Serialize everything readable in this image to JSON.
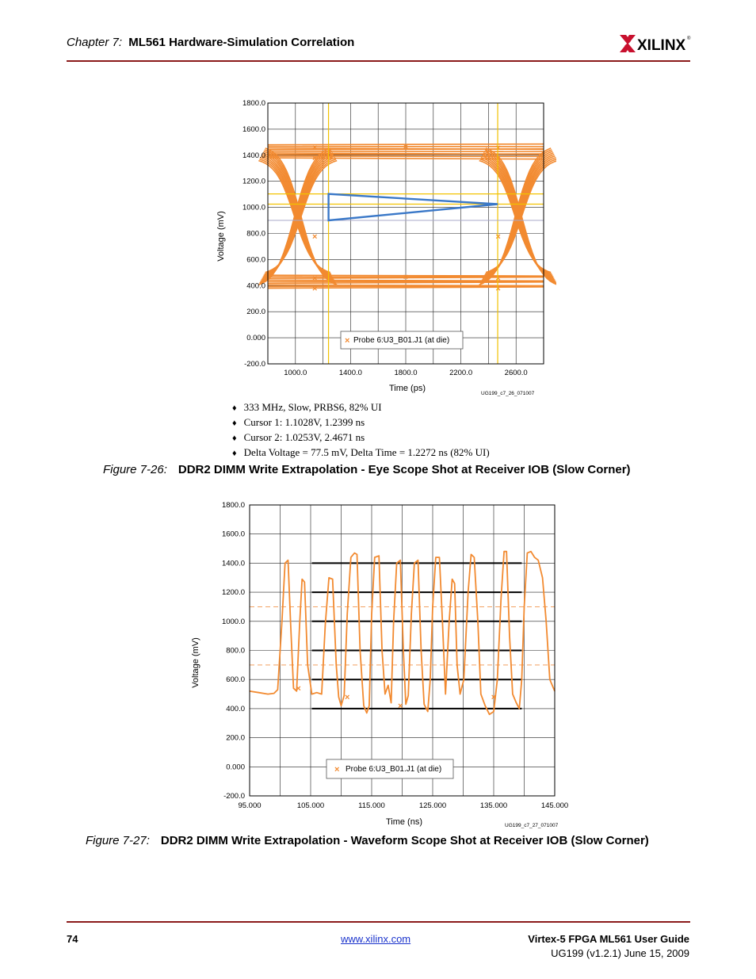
{
  "header": {
    "chapter_label": "Chapter 7:",
    "chapter_title": "ML561 Hardware-Simulation Correlation",
    "logo_text": "XILINX",
    "logo_mark": "®"
  },
  "figure1": {
    "caption_label": "Figure 7-26:",
    "caption_title": "DDR2 DIMM Write Extrapolation - Eye Scope Shot at Receiver IOB (Slow Corner)",
    "figure_id": "UG199_c7_26_071007",
    "bullets": [
      "333 MHz, Slow, PRBS6, 82% UI",
      "Cursor 1: 1.1028V, 1.2399 ns",
      "Cursor 2: 1.0253V, 2.4671 ns",
      "Delta Voltage = 77.5 mV, Delta Time = 1.2272 ns (82% UI)"
    ]
  },
  "figure2": {
    "caption_label": "Figure 7-27:",
    "caption_title": "DDR2 DIMM Write Extrapolation - Waveform Scope Shot at Receiver IOB (Slow Corner)",
    "figure_id": "UG199_c7_27_071007"
  },
  "chart_data": [
    {
      "type": "line",
      "subtype": "eye-diagram",
      "xlabel": "Time (ps)",
      "ylabel": "Voltage (mV)",
      "xlim": [
        800,
        2800
      ],
      "ylim": [
        -200,
        1800
      ],
      "x_ticks": [
        "1000.0",
        "1400.0",
        "1800.0",
        "2200.0",
        "2600.0"
      ],
      "y_ticks": [
        "1800.0",
        "1600.0",
        "1400.0",
        "1200.0",
        "1000.0",
        "800.0",
        "600.0",
        "400.0",
        "200.0",
        "0.000",
        "-200.0"
      ],
      "series": [
        {
          "name": "Probe 6:U3_B01.J1 (at die)",
          "color": "#f28a30"
        }
      ],
      "eye": {
        "crossing_left_ps": 1020,
        "crossing_right_ps": 2620,
        "high_mv": [
          1380,
          1480
        ],
        "low_mv": [
          380,
          480
        ],
        "cross_mv": 780
      },
      "cursors": {
        "x_ps": [
          1240,
          2467
        ],
        "y_mv": [
          1103,
          1025
        ],
        "color": "#f2c200"
      },
      "mask": {
        "points": [
          [
            1240,
            1103
          ],
          [
            1240,
            900
          ],
          [
            2467,
            1025
          ]
        ],
        "color": "#3a78c8"
      },
      "legend": "bottom-center",
      "grid": true
    },
    {
      "type": "line",
      "subtype": "waveform",
      "xlabel": "Time (ns)",
      "ylabel": "Voltage (mV)",
      "xlim": [
        95,
        145
      ],
      "ylim": [
        -200,
        1800
      ],
      "x_ticks": [
        "95.000",
        "105.000",
        "115.000",
        "125.000",
        "135.000",
        "145.000"
      ],
      "y_ticks": [
        "1800.0",
        "1600.0",
        "1400.0",
        "1200.0",
        "1000.0",
        "800.0",
        "600.0",
        "400.0",
        "200.0",
        "0.000",
        "-200.0"
      ],
      "series": [
        {
          "name": "Probe 6:U3_B01.J1 (at die)",
          "color": "#f28a30",
          "x": [
            95.0,
            96.5,
            98.0,
            99.0,
            99.6,
            100.3,
            100.8,
            101.3,
            101.7,
            102.2,
            102.7,
            103.2,
            103.6,
            104.0,
            104.5,
            105.2,
            106.0,
            106.8,
            107.4,
            108.0,
            108.6,
            109.2,
            109.6,
            110.0,
            110.5,
            111.0,
            111.6,
            112.2,
            112.6,
            113.1,
            113.7,
            114.2,
            114.6,
            115.0,
            115.5,
            116.2,
            116.7,
            117.2,
            117.7,
            118.2,
            118.6,
            119.1,
            119.7,
            120.2,
            120.6,
            121.0,
            121.5,
            122.0,
            122.6,
            123.1,
            123.6,
            124.2,
            124.6,
            125.0,
            125.5,
            126.1,
            126.6,
            127.1,
            127.7,
            128.2,
            128.6,
            129.0,
            129.5,
            130.1,
            130.8,
            131.3,
            131.8,
            132.4,
            132.9,
            133.6,
            134.3,
            135.0,
            135.6,
            136.2,
            136.7,
            137.1,
            137.6,
            138.1,
            138.7,
            139.2,
            139.6,
            140.0,
            140.5,
            141.1,
            141.7,
            142.3,
            143.0,
            143.6,
            144.2,
            145.0
          ],
          "values": [
            520,
            510,
            500,
            505,
            530,
            1000,
            1400,
            1420,
            1000,
            540,
            520,
            980,
            1290,
            1270,
            700,
            500,
            510,
            500,
            980,
            1300,
            1290,
            700,
            480,
            420,
            490,
            1050,
            1440,
            1470,
            1460,
            800,
            420,
            370,
            420,
            1050,
            1440,
            1450,
            800,
            500,
            560,
            440,
            1000,
            1400,
            1420,
            800,
            430,
            490,
            1050,
            1400,
            1420,
            800,
            430,
            380,
            600,
            1100,
            1440,
            1440,
            1000,
            500,
            1000,
            1290,
            1260,
            700,
            500,
            600,
            1200,
            1460,
            1440,
            1000,
            500,
            420,
            360,
            380,
            600,
            1150,
            1480,
            1480,
            900,
            500,
            440,
            400,
            600,
            1100,
            1470,
            1480,
            1440,
            1420,
            1300,
            1000,
            600,
            520
          ]
        }
      ],
      "reference_lines_mv": {
        "solid_black": [
          400,
          600,
          800,
          1000,
          1200,
          1400
        ],
        "dashed_orange": [
          700,
          1100
        ]
      },
      "legend": "bottom-center",
      "grid": true
    }
  ],
  "footer": {
    "page_number": "74",
    "url": "www.xilinx.com",
    "guide_title": "Virtex-5 FPGA ML561 User Guide",
    "doc_id": "UG199 (v1.2.1) June 15, 2009"
  }
}
